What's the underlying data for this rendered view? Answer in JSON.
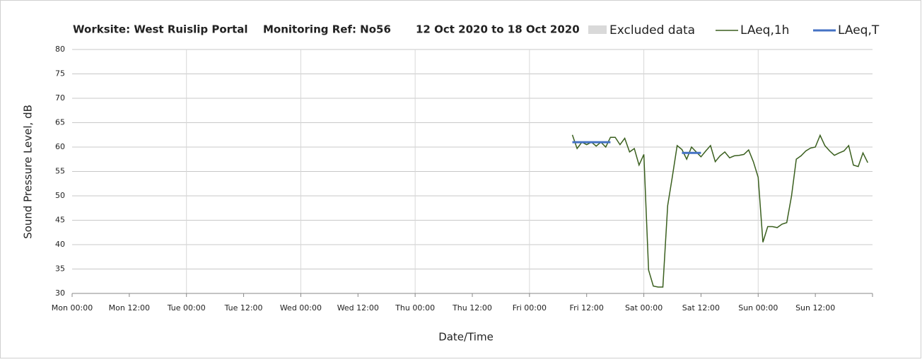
{
  "chart_data": {
    "type": "line",
    "title": [
      "Worksite: West Ruislip Portal",
      "Monitoring Ref: No56",
      "12 Oct 2020 to 18 Oct 2020"
    ],
    "x_label": "Date/Time",
    "y_label": "Sound Pressure Level, dB",
    "xlim": [
      0,
      168
    ],
    "xticks": [
      {
        "value": 0,
        "label": "Mon 00:00"
      },
      {
        "value": 12,
        "label": "Mon 12:00"
      },
      {
        "value": 24,
        "label": "Tue 00:00"
      },
      {
        "value": 36,
        "label": "Tue 12:00"
      },
      {
        "value": 48,
        "label": "Wed 00:00"
      },
      {
        "value": 60,
        "label": "Wed 12:00"
      },
      {
        "value": 72,
        "label": "Thu 00:00"
      },
      {
        "value": 84,
        "label": "Thu 12:00"
      },
      {
        "value": 96,
        "label": "Fri 00:00"
      },
      {
        "value": 108,
        "label": "Fri 12:00"
      },
      {
        "value": 120,
        "label": "Sat 00:00"
      },
      {
        "value": 132,
        "label": "Sat 12:00"
      },
      {
        "value": 144,
        "label": "Sun 00:00"
      },
      {
        "value": 156,
        "label": "Sun 12:00"
      }
    ],
    "ylim": [
      30,
      80
    ],
    "yticks": [
      30,
      35,
      40,
      45,
      50,
      55,
      60,
      65,
      70,
      75,
      80
    ],
    "grid": true,
    "series": [
      {
        "name": "Excluded data",
        "color": "#d9d9d9",
        "style": "box"
      },
      {
        "name": "LAeq,1h",
        "color": "#3a5f1e",
        "style": "line",
        "x": [
          105,
          106,
          107,
          108,
          109,
          110,
          111,
          112,
          113,
          114,
          115,
          116,
          117,
          118,
          119,
          120,
          121,
          122,
          123,
          124,
          125,
          126,
          127,
          128,
          129,
          130,
          131,
          132,
          133,
          134,
          135,
          136,
          137,
          138,
          139,
          140,
          141,
          142,
          143,
          144,
          145,
          146,
          147,
          148,
          149,
          150,
          151,
          152,
          153,
          154,
          155,
          156,
          157,
          158,
          159,
          160,
          161,
          162,
          163,
          164,
          165,
          166,
          167
        ],
        "values": [
          62.5,
          59.7,
          61,
          60.5,
          61,
          60.2,
          61,
          60,
          62,
          62,
          60.5,
          61.8,
          59,
          59.7,
          56.3,
          58.5,
          34.8,
          31.5,
          31.3,
          31.3,
          48,
          54,
          60.3,
          59.5,
          57.5,
          60,
          59,
          58,
          59.2,
          60.3,
          57,
          58.2,
          59,
          57.8,
          58.2,
          58.3,
          58.5,
          59.4,
          57,
          53.8,
          40.5,
          43.7,
          43.7,
          43.5,
          44.2,
          44.5,
          50,
          57.5,
          58.2,
          59.2,
          59.8,
          60,
          62.4,
          60.3,
          59.2,
          58.3,
          58.8,
          59.2,
          60.3,
          56.3,
          56,
          58.8,
          56.8
        ]
      },
      {
        "name": "LAeq,T",
        "color": "#4472c4",
        "style": "line",
        "segments": [
          {
            "x": [
              105,
              113
            ],
            "values": [
              61,
              61
            ]
          },
          {
            "x": [
              128,
              132
            ],
            "values": [
              58.8,
              58.8
            ]
          }
        ]
      }
    ]
  }
}
